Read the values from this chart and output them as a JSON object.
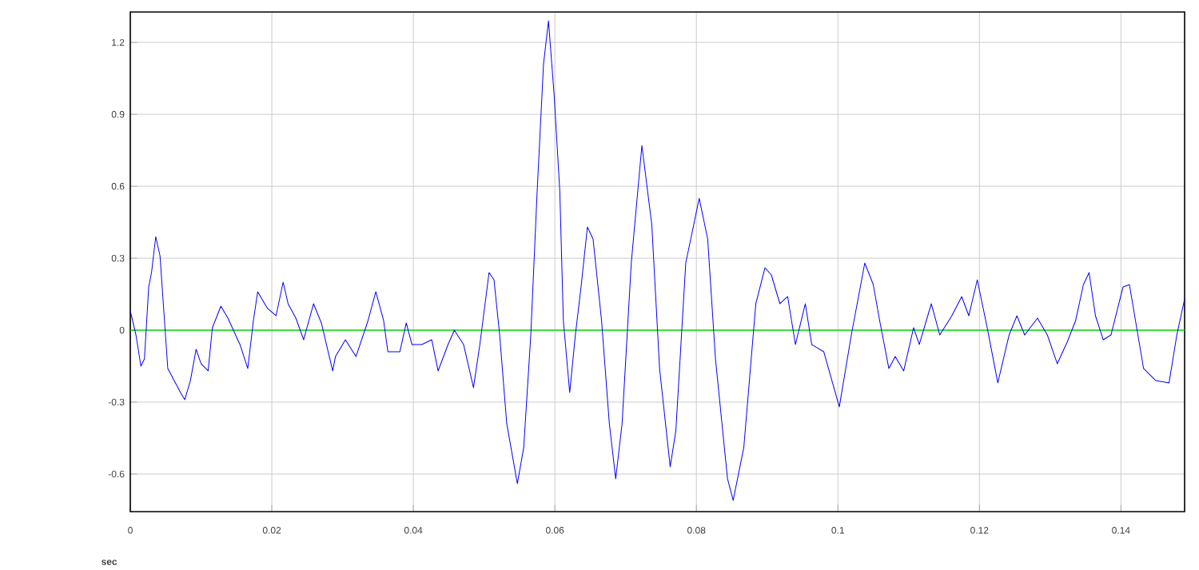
{
  "chart_data": {
    "type": "line",
    "xlabel": "sec",
    "x": [
      0,
      0.0008,
      0.0015,
      0.002,
      0.0026,
      0.003,
      0.0036,
      0.0042,
      0.0053,
      0.0062,
      0.0071,
      0.0077,
      0.0085,
      0.0093,
      0.01,
      0.011,
      0.0116,
      0.0128,
      0.0138,
      0.0155,
      0.0166,
      0.0174,
      0.018,
      0.0194,
      0.0206,
      0.0216,
      0.0223,
      0.0234,
      0.0245,
      0.0259,
      0.027,
      0.0286,
      0.029,
      0.0304,
      0.0319,
      0.0336,
      0.0347,
      0.0358,
      0.0364,
      0.0381,
      0.039,
      0.0398,
      0.0412,
      0.0426,
      0.0435,
      0.0449,
      0.0458,
      0.0471,
      0.0485,
      0.0494,
      0.0507,
      0.0514,
      0.0522,
      0.0532,
      0.0547,
      0.0556,
      0.0566,
      0.0575,
      0.0584,
      0.0591,
      0.0599,
      0.0607,
      0.0612,
      0.0621,
      0.0629,
      0.0637,
      0.0646,
      0.0654,
      0.0666,
      0.0677,
      0.0686,
      0.0695,
      0.0708,
      0.0723,
      0.0737,
      0.0748,
      0.0763,
      0.0771,
      0.0785,
      0.0804,
      0.0816,
      0.0827,
      0.0844,
      0.0852,
      0.0867,
      0.0884,
      0.0897,
      0.0906,
      0.0918,
      0.0929,
      0.094,
      0.0954,
      0.0963,
      0.098,
      0.1002,
      0.1019,
      0.1038,
      0.105,
      0.1059,
      0.1072,
      0.1081,
      0.1093,
      0.1107,
      0.1115,
      0.1132,
      0.1144,
      0.1161,
      0.1175,
      0.1185,
      0.1197,
      0.1211,
      0.1226,
      0.1242,
      0.1253,
      0.1264,
      0.1282,
      0.1296,
      0.131,
      0.1324,
      0.1336,
      0.1347,
      0.1355,
      0.1364,
      0.1375,
      0.1386,
      0.1403,
      0.1412,
      0.1432,
      0.1449,
      0.1468,
      0.1479,
      0.149
    ],
    "series": [
      {
        "color": "#0000ff",
        "values": [
          0.08,
          -0.02,
          -0.15,
          -0.12,
          0.18,
          0.24,
          0.39,
          0.31,
          -0.16,
          -0.21,
          -0.26,
          -0.29,
          -0.21,
          -0.08,
          -0.14,
          -0.17,
          0.01,
          0.1,
          0.05,
          -0.06,
          -0.16,
          0.04,
          0.16,
          0.09,
          0.06,
          0.2,
          0.11,
          0.05,
          -0.04,
          0.11,
          0.03,
          -0.17,
          -0.11,
          -0.04,
          -0.11,
          0.04,
          0.16,
          0.04,
          -0.09,
          -0.09,
          0.03,
          -0.06,
          -0.06,
          -0.04,
          -0.17,
          -0.06,
          0.0,
          -0.06,
          -0.24,
          -0.06,
          0.24,
          0.21,
          -0.02,
          -0.39,
          -0.64,
          -0.49,
          -0.02,
          0.58,
          1.11,
          1.29,
          0.98,
          0.58,
          0.04,
          -0.26,
          -0.02,
          0.18,
          0.43,
          0.38,
          0.04,
          -0.39,
          -0.62,
          -0.39,
          0.28,
          0.77,
          0.44,
          -0.16,
          -0.57,
          -0.42,
          0.28,
          0.55,
          0.38,
          -0.12,
          -0.62,
          -0.71,
          -0.49,
          0.11,
          0.26,
          0.23,
          0.11,
          0.14,
          -0.06,
          0.11,
          -0.06,
          -0.09,
          -0.32,
          -0.02,
          0.28,
          0.19,
          0.04,
          -0.16,
          -0.11,
          -0.17,
          0.01,
          -0.06,
          0.11,
          -0.02,
          0.06,
          0.14,
          0.06,
          0.21,
          0.01,
          -0.22,
          -0.02,
          0.06,
          -0.02,
          0.05,
          -0.02,
          -0.14,
          -0.05,
          0.04,
          0.19,
          0.24,
          0.06,
          -0.04,
          -0.02,
          0.18,
          0.19,
          -0.16,
          -0.21,
          -0.22,
          -0.02,
          0.13
        ]
      }
    ],
    "xlim": [
      0,
      0.149
    ],
    "ylim": [
      -0.757,
      1.327
    ],
    "xticks": [
      0,
      0.02,
      0.04,
      0.06,
      0.08,
      0.1,
      0.12,
      0.14
    ],
    "yticks": [
      -0.6,
      -0.3,
      0,
      0.3,
      0.6,
      0.9,
      1.2
    ],
    "grid": true,
    "marker": "none",
    "line_style": "solid",
    "ref_lines": [
      {
        "axis": "y",
        "value": 0,
        "color": "#00e000"
      }
    ]
  }
}
